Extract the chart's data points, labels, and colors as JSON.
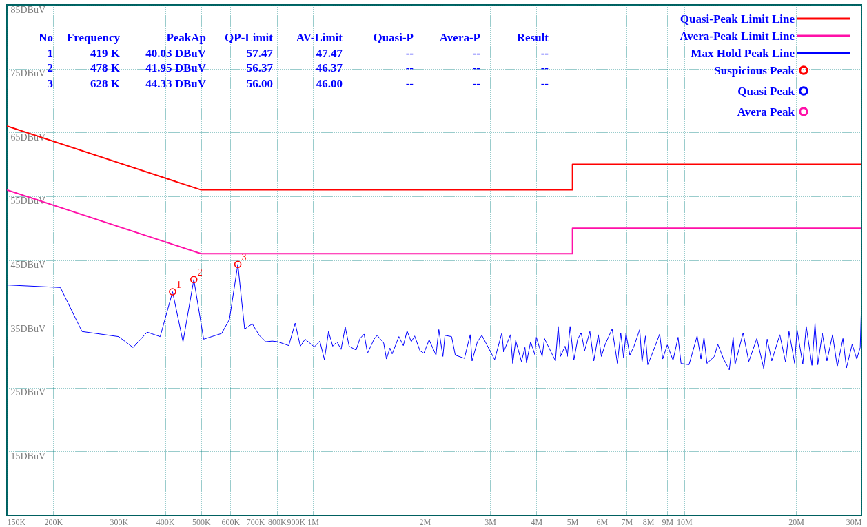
{
  "chart_data": {
    "type": "line",
    "xlim": [
      150000,
      30000000
    ],
    "ylim": [
      5,
      85
    ],
    "log": "x",
    "grid": true,
    "legend": "top right",
    "xticks": [
      {
        "value": 150000,
        "label": "150K"
      },
      {
        "value": 200000,
        "label": "200K"
      },
      {
        "value": 300000,
        "label": "300K"
      },
      {
        "value": 400000,
        "label": "400K"
      },
      {
        "value": 500000,
        "label": "500K"
      },
      {
        "value": 600000,
        "label": "600K"
      },
      {
        "value": 700000,
        "label": "700K"
      },
      {
        "value": 800000,
        "label": "800K"
      },
      {
        "value": 900000,
        "label": "900K"
      },
      {
        "value": 1000000,
        "label": "1M"
      },
      {
        "value": 2000000,
        "label": "2M"
      },
      {
        "value": 3000000,
        "label": "3M"
      },
      {
        "value": 4000000,
        "label": "4M"
      },
      {
        "value": 5000000,
        "label": "5M"
      },
      {
        "value": 6000000,
        "label": "6M"
      },
      {
        "value": 7000000,
        "label": "7M"
      },
      {
        "value": 8000000,
        "label": "8M"
      },
      {
        "value": 9000000,
        "label": "9M"
      },
      {
        "value": 10000000,
        "label": "10M"
      },
      {
        "value": 20000000,
        "label": "20M"
      },
      {
        "value": 30000000,
        "label": "30M"
      }
    ],
    "yticks": [
      {
        "value": 15,
        "label": "15DBuV"
      },
      {
        "value": 25,
        "label": "25DBuV"
      },
      {
        "value": 35,
        "label": "35DBuV"
      },
      {
        "value": 45,
        "label": "45DBuV"
      },
      {
        "value": 55,
        "label": "55DBuV"
      },
      {
        "value": 65,
        "label": "65DBuV"
      },
      {
        "value": 75,
        "label": "75DBuV"
      },
      {
        "value": 85,
        "label": "85DBuV"
      }
    ],
    "annotations": [
      "No",
      "Frequency",
      "PeakAp",
      "QP-Limit",
      "AV-Limit",
      "Quasi-P",
      "Avera-P",
      "Result",
      "1",
      "419 K",
      "40.03 DBuV",
      "57.47",
      "47.47",
      "--",
      "--",
      "--",
      "2",
      "478 K",
      "41.95 DBuV",
      "56.37",
      "46.37",
      "--",
      "--",
      "--",
      "3",
      "628 K",
      "44.33 DBuV",
      "56.00",
      "46.00",
      "--",
      "--",
      "--",
      {
        "text": "1",
        "x": 419000,
        "y": 40.03
      },
      {
        "text": "2",
        "x": 478000,
        "y": 41.95
      },
      {
        "text": "3",
        "x": 628000,
        "y": 44.33
      }
    ],
    "series": [
      {
        "name": "Quasi-Peak Limit Line",
        "color": "#ff0000",
        "x": [
          150000,
          500000,
          5000000,
          5000000,
          30000000
        ],
        "values": [
          66,
          56,
          56,
          60,
          60
        ]
      },
      {
        "name": "Avera-Peak Limit Line",
        "color": "#ff10a8",
        "x": [
          150000,
          500000,
          5000000,
          5000000,
          30000000
        ],
        "values": [
          56,
          46,
          46,
          50,
          50
        ]
      },
      {
        "name": "Max Hold Peak Line",
        "color": "#0000ff",
        "x": [
          150000,
          209000,
          239000,
          300000,
          328000,
          358000,
          388000,
          419000,
          447000,
          478000,
          508000,
          568000,
          596000,
          628000,
          655000,
          687000,
          717000,
          747000,
          777000,
          805000,
          861000,
          896000,
          925000,
          953000,
          1009000,
          1044000,
          1074000,
          1102000,
          1131000,
          1161000,
          1191000,
          1222000,
          1252000,
          1307000,
          1339000,
          1374000,
          1403000,
          1461000,
          1490000,
          1551000,
          1578000,
          1612000,
          1635000,
          1704000,
          1752000,
          1793000,
          1840000,
          1879000,
          1942000,
          1990000,
          2056000,
          2145000,
          2183000,
          2239000,
          2268000,
          2363000,
          2418000,
          2559000,
          2652000,
          2683000,
          2773000,
          2851000,
          3086000,
          3228000,
          3262000,
          3404000,
          3452000,
          3516000,
          3644000,
          3723000,
          3760000,
          3857000,
          3958000,
          3997000,
          4143000,
          4202000,
          4498000,
          4577000,
          4641000,
          4775000,
          4843000,
          4927000,
          5042000,
          5164000,
          5277000,
          5390000,
          5569000,
          5706000,
          5869000,
          5981000,
          6126000,
          6394000,
          6607000,
          6744000,
          6867000,
          6966000,
          7136000,
          7322000,
          7586000,
          7697000,
          7862000,
          7975000,
          8206000,
          8587000,
          8748000,
          9000000,
          9328000,
          9623000,
          9802000,
          10300000,
          10830000,
          11090000,
          11300000,
          11510000,
          12050000,
          12310000,
          12760000,
          13220000,
          13540000,
          13700000,
          14400000,
          14920000,
          15680000,
          16370000,
          16720000,
          17200000,
          18080000,
          18740000,
          19140000,
          19830000,
          20120000,
          20850000,
          21300000,
          22070000,
          22490000,
          22880000,
          23530000,
          24220000,
          25080000,
          25820000,
          26750000,
          27330000,
          28320000,
          29140000,
          29770000,
          30000000
        ],
        "values": [
          41.1,
          40.7,
          33.8,
          33.0,
          31.3,
          33.7,
          33.0,
          40.03,
          32.2,
          41.95,
          32.6,
          33.5,
          35.7,
          44.33,
          34.2,
          35.0,
          33.2,
          32.2,
          32.3,
          32.2,
          31.6,
          35.1,
          31.5,
          32.6,
          31.4,
          32.3,
          29.4,
          33.8,
          31.5,
          32.2,
          31.0,
          34.5,
          31.5,
          30.9,
          32.7,
          33.4,
          30.4,
          32.6,
          33.2,
          32.0,
          29.5,
          31.2,
          30.3,
          33.0,
          31.6,
          33.9,
          32.2,
          33.1,
          30.8,
          30.4,
          32.5,
          30.1,
          34.1,
          29.9,
          33.2,
          33.0,
          30.1,
          29.6,
          33.3,
          29.2,
          32.2,
          33.2,
          29.4,
          33.6,
          30.6,
          33.3,
          28.8,
          32.4,
          29.1,
          31.3,
          28.9,
          32.2,
          30.2,
          32.9,
          29.9,
          32.7,
          29.2,
          34.6,
          29.9,
          31.5,
          29.9,
          34.6,
          29.3,
          32.6,
          33.6,
          30.8,
          33.8,
          29.2,
          33.3,
          29.9,
          31.8,
          34.2,
          28.8,
          33.6,
          29.7,
          33.5,
          30.1,
          31.5,
          34.1,
          29.0,
          33.1,
          28.6,
          30.4,
          33.4,
          29.5,
          31.7,
          29.3,
          32.9,
          28.8,
          28.6,
          33.1,
          29.5,
          32.9,
          28.8,
          29.9,
          31.8,
          29.5,
          27.8,
          32.9,
          28.6,
          33.6,
          29.1,
          32.7,
          28.0,
          32.6,
          29.2,
          33.3,
          29.0,
          33.8,
          28.8,
          34.1,
          28.7,
          34.6,
          28.5,
          35.1,
          28.6,
          33.5,
          29.2,
          33.3,
          28.3,
          32.7,
          28.1,
          31.8,
          29.5,
          31.3,
          38.4
        ]
      },
      {
        "name": "Suspicious Peak",
        "type": "scatter",
        "marker": "circle",
        "color": "#ff0000",
        "x": [
          419000,
          478000,
          628000
        ],
        "values": [
          40.03,
          41.95,
          44.33
        ]
      },
      {
        "name": "Quasi Peak",
        "type": "scatter",
        "marker": "circle",
        "color": "#0000ff"
      },
      {
        "name": "Avera Peak",
        "type": "scatter",
        "marker": "circle",
        "color": "#ff10a8"
      }
    ]
  }
}
